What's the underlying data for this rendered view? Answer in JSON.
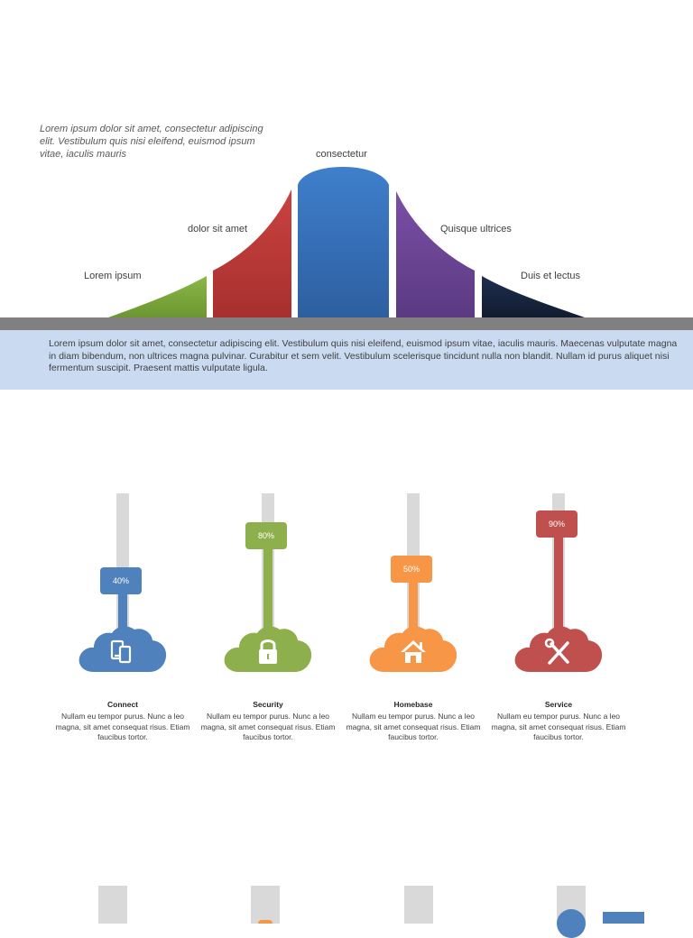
{
  "intro_text": "Lorem ipsum dolor sit amet, consectetur adipiscing elit. Vestibulum quis nisi eleifend, euismod ipsum vitae, iaculis mauris",
  "curve": {
    "segments": [
      {
        "label": "Lorem ipsum",
        "color": "#7aa43a"
      },
      {
        "label": "dolor sit amet",
        "color": "#c0393a"
      },
      {
        "label": "consectetur",
        "color": "#3571be"
      },
      {
        "label": "Quisque ultrices",
        "color": "#6e4595"
      },
      {
        "label": "Duis et lectus",
        "color": "#17253f"
      }
    ]
  },
  "description": "Lorem ipsum dolor sit amet, consectetur adipiscing elit. Vestibulum quis nisi eleifend, euismod ipsum vitae, iaculis mauris. Maecenas vulputate magna in diam bibendum, non ultrices magna pulvinar. Curabitur et sem velit. Vestibulum scelerisque tincidunt nulla non blandit. Nullam id purus aliquet nisi fermentum suscipit. Praesent mattis vulputate ligula.",
  "gauges": [
    {
      "title": "Connect",
      "value": 40,
      "label": "40%",
      "color": "#4f81bd",
      "icon": "mobile-devices-icon",
      "text": "Nullam eu tempor purus. Nunc a leo magna, sit amet consequat risus. Etiam faucibus tortor."
    },
    {
      "title": "Security",
      "value": 80,
      "label": "80%",
      "color": "#8db04c",
      "icon": "lock-icon",
      "text": "Nullam eu tempor purus. Nunc a leo magna, sit amet consequat risus. Etiam faucibus tortor."
    },
    {
      "title": "Homebase",
      "value": 50,
      "label": "50%",
      "color": "#f79646",
      "icon": "house-icon",
      "text": "Nullam eu tempor purus. Nunc a leo magna, sit amet consequat risus. Etiam faucibus tortor."
    },
    {
      "title": "Service",
      "value": 90,
      "label": "90%",
      "color": "#c0504d",
      "icon": "tools-icon",
      "text": "Nullam eu tempor purus. Nunc a leo magna, sit amet consequat risus. Etiam faucibus tortor."
    }
  ],
  "accent_bg": "#c9daf1",
  "track_color": "#d9d9d9"
}
